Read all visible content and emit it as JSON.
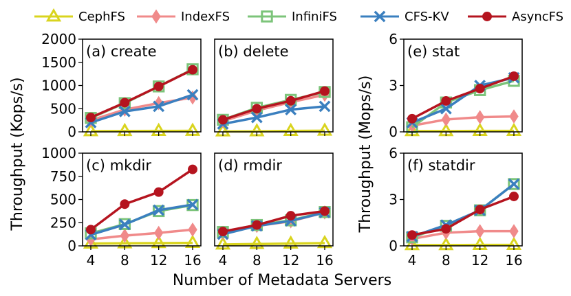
{
  "chart_data": {
    "type": "line",
    "x_categories": [
      "4",
      "8",
      "12",
      "16"
    ],
    "xlabel": "Number of Metadata Servers",
    "ylabel_left": "Throughput (Kops/s)",
    "ylabel_right": "Throughput (Mops/s)",
    "legend": {
      "placement": "top",
      "entries": [
        {
          "name": "CephFS",
          "color": "#d9d41e",
          "marker": "triangle"
        },
        {
          "name": "IndexFS",
          "color": "#f08a8a",
          "marker": "diamond"
        },
        {
          "name": "InfiniFS",
          "color": "#7cc47a",
          "marker": "square"
        },
        {
          "name": "CFS-KV",
          "color": "#3a7fbf",
          "marker": "x"
        },
        {
          "name": "AsyncFS",
          "color": "#b5141f",
          "marker": "circle"
        }
      ]
    },
    "panels": [
      {
        "label": "(a) create",
        "ylim": [
          0,
          2000
        ],
        "yticks": [
          "0",
          "500",
          "1000",
          "1500",
          "2000"
        ],
        "series": [
          {
            "name": "CephFS",
            "values": [
              15,
              18,
              20,
              22
            ]
          },
          {
            "name": "IndexFS",
            "values": [
              250,
              480,
              620,
              740
            ]
          },
          {
            "name": "InfiniFS",
            "values": [
              300,
              620,
              980,
              1350
            ]
          },
          {
            "name": "CFS-KV",
            "values": [
              200,
              440,
              550,
              800
            ]
          },
          {
            "name": "AsyncFS",
            "values": [
              310,
              630,
              980,
              1340
            ]
          }
        ]
      },
      {
        "label": "(b) delete",
        "ylim": [
          0,
          2000
        ],
        "yticks": [],
        "series": [
          {
            "name": "CephFS",
            "values": [
              10,
              12,
              20,
              25
            ]
          },
          {
            "name": "IndexFS",
            "values": [
              230,
              460,
              640,
              800
            ]
          },
          {
            "name": "InfiniFS",
            "values": [
              260,
              520,
              690,
              860
            ]
          },
          {
            "name": "CFS-KV",
            "values": [
              170,
              310,
              480,
              550
            ]
          },
          {
            "name": "AsyncFS",
            "values": [
              260,
              500,
              670,
              880
            ]
          }
        ]
      },
      {
        "label": "(e) stat",
        "ylim": [
          0,
          6
        ],
        "yticks": [
          "0",
          "3",
          "6"
        ],
        "series": [
          {
            "name": "CephFS",
            "values": [
              0.05,
              0.05,
              0.06,
              0.06
            ]
          },
          {
            "name": "IndexFS",
            "values": [
              0.4,
              0.8,
              0.95,
              1.0
            ]
          },
          {
            "name": "InfiniFS",
            "values": [
              0.3,
              1.9,
              2.7,
              3.3
            ]
          },
          {
            "name": "CFS-KV",
            "values": [
              0.6,
              1.5,
              3.0,
              3.5
            ]
          },
          {
            "name": "AsyncFS",
            "values": [
              0.85,
              2.0,
              2.8,
              3.6
            ]
          }
        ]
      },
      {
        "label": "(c) mkdir",
        "ylim": [
          0,
          1000
        ],
        "yticks": [
          "0",
          "250",
          "500",
          "750",
          "1000"
        ],
        "series": [
          {
            "name": "CephFS",
            "values": [
              25,
              28,
              30,
              32
            ]
          },
          {
            "name": "IndexFS",
            "values": [
              70,
              110,
              140,
              175
            ]
          },
          {
            "name": "InfiniFS",
            "values": [
              135,
              235,
              375,
              440
            ]
          },
          {
            "name": "CFS-KV",
            "values": [
              120,
              230,
              385,
              445
            ]
          },
          {
            "name": "AsyncFS",
            "values": [
              175,
              450,
              580,
              825
            ]
          }
        ]
      },
      {
        "label": "(d) rmdir",
        "ylim": [
          0,
          1000
        ],
        "yticks": [],
        "series": [
          {
            "name": "CephFS",
            "values": [
              15,
              20,
              25,
              30
            ]
          },
          {
            "name": "IndexFS",
            "values": [
              140,
              215,
              265,
              360
            ]
          },
          {
            "name": "InfiniFS",
            "values": [
              150,
              225,
              275,
              365
            ]
          },
          {
            "name": "CFS-KV",
            "values": [
              125,
              215,
              270,
              360
            ]
          },
          {
            "name": "AsyncFS",
            "values": [
              155,
              225,
              325,
              375
            ]
          }
        ]
      },
      {
        "label": "(f) statdir",
        "ylim": [
          0,
          6
        ],
        "yticks": [
          "0",
          "3",
          "6"
        ],
        "series": [
          {
            "name": "CephFS",
            "values": [
              0.05,
              0.05,
              0.06,
              0.06
            ]
          },
          {
            "name": "IndexFS",
            "values": [
              0.45,
              0.85,
              0.95,
              0.95
            ]
          },
          {
            "name": "InfiniFS",
            "values": [
              0.55,
              1.3,
              2.3,
              4.0
            ]
          },
          {
            "name": "CFS-KV",
            "values": [
              0.6,
              1.35,
              2.3,
              4.0
            ]
          },
          {
            "name": "AsyncFS",
            "values": [
              0.7,
              1.1,
              2.35,
              3.2
            ]
          }
        ]
      }
    ]
  }
}
